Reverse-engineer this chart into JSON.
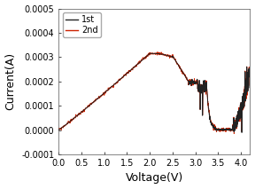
{
  "title": "",
  "xlabel": "Voltage(V)",
  "ylabel": "Current(A)",
  "xlim": [
    0.0,
    4.2
  ],
  "ylim": [
    -0.0001,
    0.0005
  ],
  "xticks": [
    0.0,
    0.5,
    1.0,
    1.5,
    2.0,
    2.5,
    3.0,
    3.5,
    4.0
  ],
  "yticks": [
    -0.0001,
    0.0,
    0.0001,
    0.0002,
    0.0003,
    0.0004,
    0.0005
  ],
  "line1_color": "#222222",
  "line2_color": "#cc2200",
  "legend_labels": [
    "1st",
    "2nd"
  ],
  "background_color": "#ffffff",
  "xlabel_fontsize": 9,
  "ylabel_fontsize": 9,
  "tick_fontsize": 7
}
